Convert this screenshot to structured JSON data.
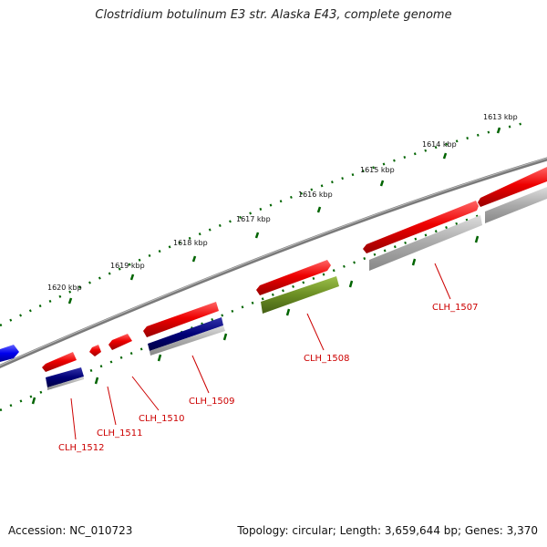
{
  "header": {
    "title": "Clostridium botulinum E3 str. Alaska E43, complete genome"
  },
  "footer": {
    "accession": "Accession: NC_010723",
    "stats": "Topology: circular; Length: 3,659,644 bp; Genes: 3,370"
  },
  "scale": {
    "ticks": [
      {
        "label": "1613 kbp"
      },
      {
        "label": "1614 kbp"
      },
      {
        "label": "1615 kbp"
      },
      {
        "label": "1616 kbp"
      },
      {
        "label": "1617 kbp"
      },
      {
        "label": "1618 kbp"
      },
      {
        "label": "1619 kbp"
      },
      {
        "label": "1620 kbp"
      }
    ]
  },
  "genes": [
    {
      "label": "CLH_1507"
    },
    {
      "label": "CLH_1508"
    },
    {
      "label": "CLH_1509"
    },
    {
      "label": "CLH_1510"
    },
    {
      "label": "CLH_1511"
    },
    {
      "label": "CLH_1512"
    }
  ],
  "colors": {
    "cds": "#ee0000",
    "gene_dark": "#000077",
    "gene_gray": "#aaaaaa",
    "rrna_olive": "#6b8e23",
    "other": "#0000ee",
    "backbone": "#777777",
    "ticks": "#006400",
    "label": "#cc0000"
  }
}
